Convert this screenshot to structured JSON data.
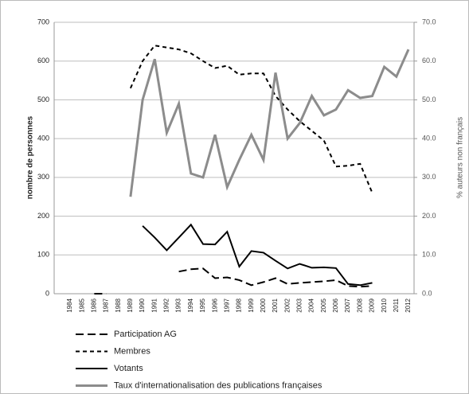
{
  "chart_data": {
    "type": "line",
    "ylabel": "nombre de personnes",
    "y2label": "% auteurs non français",
    "categories": [
      "1984",
      "1985",
      "1986",
      "1987",
      "1988",
      "1989",
      "1990",
      "1991",
      "1992",
      "1993",
      "1994",
      "1995",
      "1996",
      "1997",
      "1998",
      "1999",
      "2000",
      "2001",
      "2002",
      "2003",
      "2004",
      "2005",
      "2006",
      "2007",
      "2008",
      "2009",
      "2010",
      "2011",
      "2012"
    ],
    "ylim": [
      0,
      700
    ],
    "yticks": [
      0,
      100,
      200,
      300,
      400,
      500,
      600,
      700
    ],
    "y2lim": [
      0,
      70
    ],
    "y2ticks": [
      {
        "value": 0,
        "label": "0.0"
      },
      {
        "value": 10,
        "label": "10.0"
      },
      {
        "value": 20,
        "label": "20.0"
      },
      {
        "value": 30,
        "label": "30.0"
      },
      {
        "value": 40,
        "label": "40.0"
      },
      {
        "value": 50,
        "label": "50.0"
      },
      {
        "value": 60,
        "label": "60.0"
      },
      {
        "value": 70,
        "label": "70.0"
      }
    ],
    "grid": true,
    "series": [
      {
        "name": "Participation AG",
        "color": "#000000",
        "style": "long-dash",
        "values": [
          null,
          null,
          0,
          0,
          null,
          null,
          null,
          null,
          null,
          57,
          63,
          65,
          40,
          42,
          35,
          22,
          30,
          40,
          25,
          28,
          30,
          32,
          35,
          20,
          18,
          20,
          null,
          null,
          null
        ]
      },
      {
        "name": "Membres",
        "color": "#000000",
        "style": "short-dash",
        "values": [
          null,
          null,
          null,
          null,
          null,
          530,
          600,
          640,
          635,
          630,
          620,
          600,
          582,
          588,
          565,
          568,
          568,
          510,
          475,
          445,
          420,
          395,
          328,
          330,
          335,
          260,
          null,
          null,
          null
        ]
      },
      {
        "name": "Votants",
        "color": "#000000",
        "style": "solid",
        "values": [
          null,
          null,
          null,
          null,
          null,
          null,
          175,
          145,
          112,
          145,
          178,
          128,
          127,
          160,
          70,
          110,
          106,
          85,
          65,
          77,
          67,
          68,
          66,
          25,
          22,
          28,
          null,
          null,
          null
        ]
      },
      {
        "name": "Taux d'internationalisation des publications françaises",
        "color": "#8c8c8c",
        "style": "solid",
        "axis": "y2",
        "values": [
          null,
          null,
          null,
          null,
          null,
          25,
          50,
          60.5,
          41.5,
          49,
          31,
          30,
          41,
          27.5,
          34.5,
          41,
          34.5,
          57,
          40,
          44,
          51,
          46,
          47.5,
          52.5,
          50.5,
          51,
          58.5,
          56,
          63
        ]
      }
    ]
  }
}
